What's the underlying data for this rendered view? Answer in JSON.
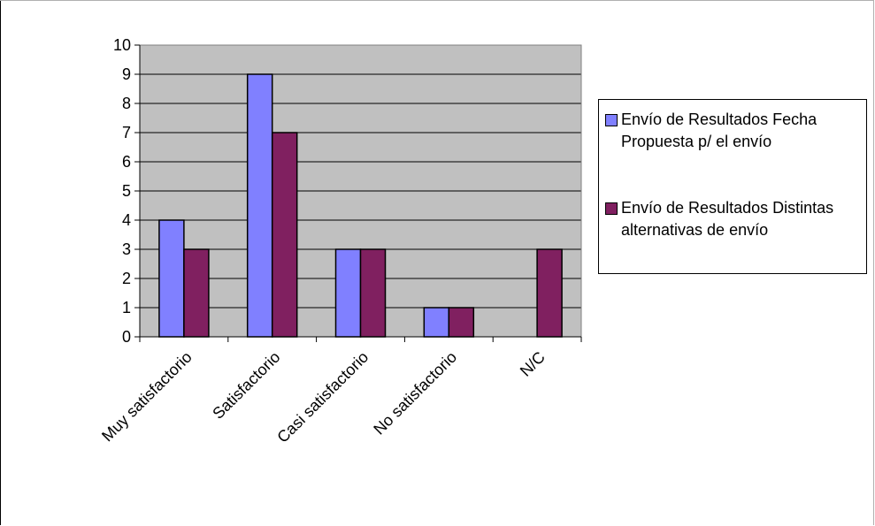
{
  "chart_data": {
    "type": "bar",
    "categories": [
      "Muy satisfactorio",
      "Satisfactorio",
      "Casi satisfactorio",
      "No satisfactorio",
      "N/C"
    ],
    "series": [
      {
        "name": "Envío de Resultados Fecha Propuesta p/ el envío",
        "values": [
          4,
          9,
          3,
          1,
          0
        ],
        "color": "#8080ff"
      },
      {
        "name": "Envío de Resultados Distintas alternativas de envío",
        "values": [
          3,
          7,
          3,
          1,
          3
        ],
        "color": "#802060"
      }
    ],
    "yticks": [
      "0",
      "1",
      "2",
      "3",
      "4",
      "5",
      "6",
      "7",
      "8",
      "9",
      "10"
    ],
    "ylim": [
      0,
      10
    ],
    "grid": true,
    "plot_background": "#c0c0c0",
    "legend_position": "right"
  }
}
